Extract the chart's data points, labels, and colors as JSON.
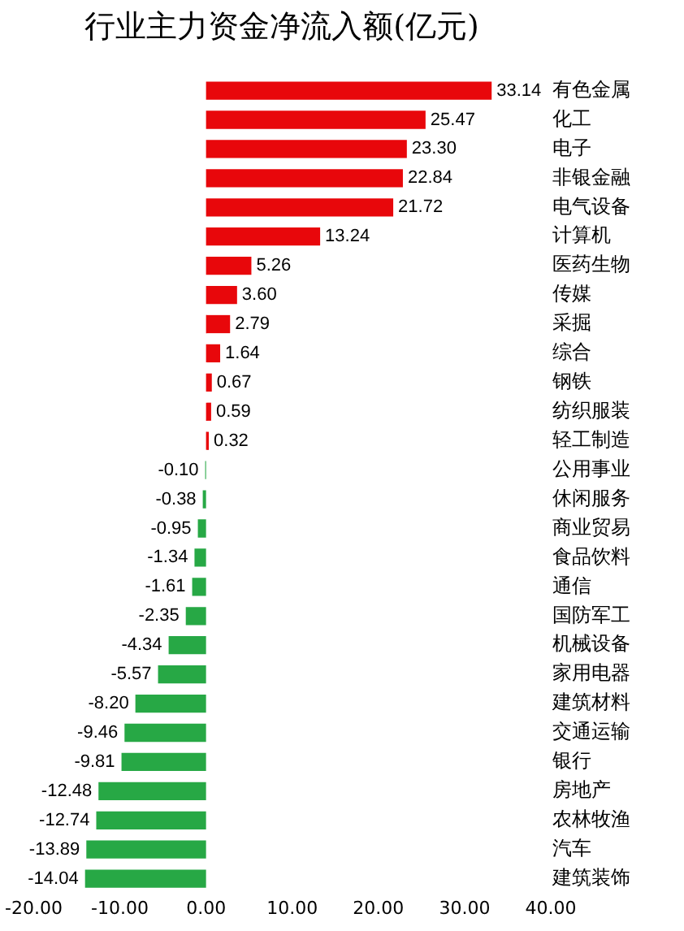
{
  "chart_data": {
    "type": "bar",
    "orientation": "horizontal",
    "title": "行业主力资金净流入额(亿元)",
    "categories": [
      "有色金属",
      "化工",
      "电子",
      "非银金融",
      "电气设备",
      "计算机",
      "医药生物",
      "传媒",
      "采掘",
      "综合",
      "钢铁",
      "纺织服装",
      "轻工制造",
      "公用事业",
      "休闲服务",
      "商业贸易",
      "食品饮料",
      "通信",
      "国防军工",
      "机械设备",
      "家用电器",
      "建筑材料",
      "交通运输",
      "银行",
      "房地产",
      "农林牧渔",
      "汽车",
      "建筑装饰"
    ],
    "values": [
      33.14,
      25.47,
      23.3,
      22.84,
      21.72,
      13.24,
      5.26,
      3.6,
      2.79,
      1.64,
      0.67,
      0.59,
      0.32,
      -0.1,
      -0.38,
      -0.95,
      -1.34,
      -1.61,
      -2.35,
      -4.34,
      -5.57,
      -8.2,
      -9.46,
      -9.81,
      -12.48,
      -12.74,
      -13.89,
      -14.04
    ],
    "value_labels": [
      "33.14",
      "25.47",
      "23.30",
      "22.84",
      "21.72",
      "13.24",
      "5.26",
      "3.60",
      "2.79",
      "1.64",
      "0.67",
      "0.59",
      "0.32",
      "-0.10",
      "-0.38",
      "-0.95",
      "-1.34",
      "-1.61",
      "-2.35",
      "-4.34",
      "-5.57",
      "-8.20",
      "-9.46",
      "-9.81",
      "-12.48",
      "-12.74",
      "-13.89",
      "-14.04"
    ],
    "colors": [
      "#e8070b",
      "#e8070b",
      "#e8070b",
      "#e8070b",
      "#e8070b",
      "#e8070b",
      "#e8070b",
      "#e8070b",
      "#e8070b",
      "#e8070b",
      "#e8070b",
      "#e8070b",
      "#e8070b",
      "#27a845",
      "#27a845",
      "#27a845",
      "#27a845",
      "#27a845",
      "#27a845",
      "#27a845",
      "#27a845",
      "#27a845",
      "#27a845",
      "#27a845",
      "#27a845",
      "#27a845",
      "#27a845",
      "#27a845"
    ],
    "xlim": [
      -20,
      40
    ],
    "xticks": [
      {
        "value": -20,
        "label": "-20.00"
      },
      {
        "value": -10,
        "label": "-10.00"
      },
      {
        "value": 0,
        "label": "0.00"
      },
      {
        "value": 10,
        "label": "10.00"
      },
      {
        "value": 20,
        "label": "20.00"
      },
      {
        "value": 30,
        "label": "30.00"
      },
      {
        "value": 40,
        "label": "40.00"
      }
    ],
    "grid": false,
    "legend": false
  }
}
